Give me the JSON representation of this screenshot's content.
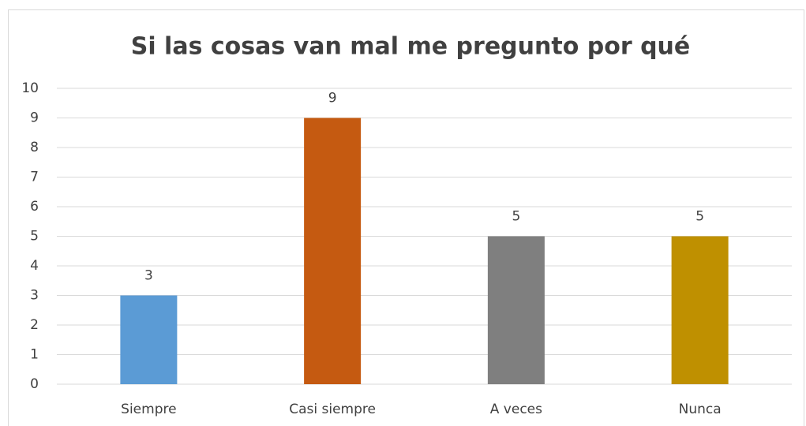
{
  "chart_data": {
    "type": "bar",
    "title": "Si las cosas van mal me pregunto por qué",
    "categories": [
      "Siempre",
      "Casi siempre",
      "A veces",
      "Nunca"
    ],
    "values": [
      3,
      9,
      5,
      5
    ],
    "colors": [
      "#5b9bd5",
      "#c55a11",
      "#7f7f7f",
      "#bf9000"
    ],
    "ylim": [
      0,
      10
    ],
    "yticks": [
      0,
      1,
      2,
      3,
      4,
      5,
      6,
      7,
      8,
      9,
      10
    ],
    "grid": true,
    "data_labels": true
  }
}
